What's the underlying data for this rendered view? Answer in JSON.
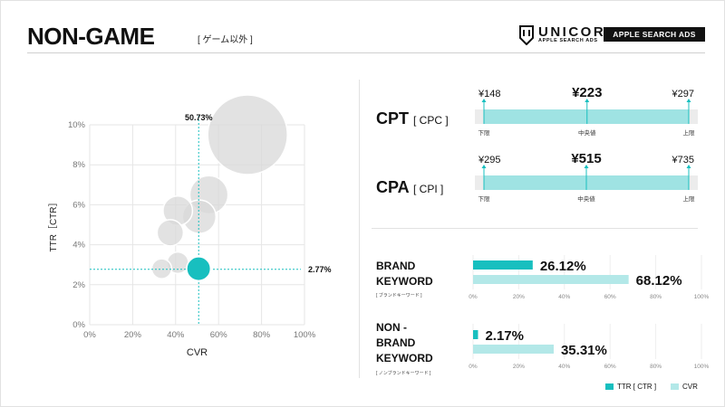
{
  "page": {
    "title": "NON-GAME",
    "subtitle": "[ ゲーム以外 ]"
  },
  "logo": {
    "name": "UNICORN",
    "sub": "APPLE SEARCH ADS",
    "badge": "APPLE SEARCH ADS"
  },
  "colors": {
    "teal": "#18bfbf",
    "teal_light": "#9fe3e3",
    "teal_pale": "#b3e8e8",
    "bubble_grey": "#d8d8d8",
    "grid": "#e6e6e6"
  },
  "chart_data": [
    {
      "type": "scatter",
      "xlabel": "CVR",
      "ylabel": "TTR［CTR］",
      "xlim": [
        0,
        100
      ],
      "ylim": [
        0,
        10
      ],
      "xticks": [
        "0%",
        "20%",
        "40%",
        "60%",
        "80%",
        "100%"
      ],
      "yticks": [
        "0%",
        "2%",
        "4%",
        "6%",
        "8%",
        "10%"
      ],
      "grid": true,
      "reference_lines": {
        "x": 50.73,
        "y": 2.77,
        "x_label": "50.73%",
        "y_label": "2.77%"
      },
      "bubbles": [
        {
          "x": 73.5,
          "y": 9.5,
          "size": 1.0,
          "highlight": false
        },
        {
          "x": 55.5,
          "y": 6.5,
          "size": 0.48,
          "highlight": false
        },
        {
          "x": 51.0,
          "y": 5.4,
          "size": 0.42,
          "highlight": false
        },
        {
          "x": 41.0,
          "y": 5.7,
          "size": 0.37,
          "highlight": false
        },
        {
          "x": 37.5,
          "y": 4.6,
          "size": 0.33,
          "highlight": false
        },
        {
          "x": 41.0,
          "y": 3.1,
          "size": 0.27,
          "highlight": false
        },
        {
          "x": 33.5,
          "y": 2.8,
          "size": 0.25,
          "highlight": false
        },
        {
          "x": 50.7,
          "y": 2.8,
          "size": 0.3,
          "highlight": true
        }
      ]
    },
    {
      "type": "range",
      "rows": [
        {
          "label": "CPT",
          "label_sub": "[ CPC ]",
          "min_value": "¥148",
          "median_value": "¥223",
          "max_value": "¥297",
          "min": 148,
          "median": 223,
          "max": 297,
          "lower_caption": "下限",
          "median_caption": "中央値",
          "upper_caption": "上限"
        },
        {
          "label": "CPA",
          "label_sub": "[ CPI ]",
          "min_value": "¥295",
          "median_value": "¥515",
          "max_value": "¥735",
          "min": 295,
          "median": 515,
          "max": 735,
          "lower_caption": "下限",
          "median_caption": "中央値",
          "upper_caption": "上限"
        }
      ]
    },
    {
      "type": "bar",
      "orientation": "horizontal",
      "xlim": [
        0,
        100
      ],
      "xticks": [
        "0%",
        "20%",
        "40%",
        "60%",
        "80%",
        "100%"
      ],
      "groups": [
        {
          "label_lines": [
            "BRAND",
            "KEYWORD"
          ],
          "label_sub": "[ ブランドキーワード ]",
          "ttr": 26.12,
          "ttr_label": "26.12%",
          "cvr": 68.12,
          "cvr_label": "68.12%"
        },
        {
          "label_lines": [
            "NON -",
            "BRAND",
            "KEYWORD"
          ],
          "label_sub": "[ ノンブランドキーワード ]",
          "ttr": 2.17,
          "ttr_label": "2.17%",
          "cvr": 35.31,
          "cvr_label": "35.31%"
        }
      ],
      "legend": [
        "TTR [ CTR ]",
        "CVR"
      ]
    }
  ]
}
